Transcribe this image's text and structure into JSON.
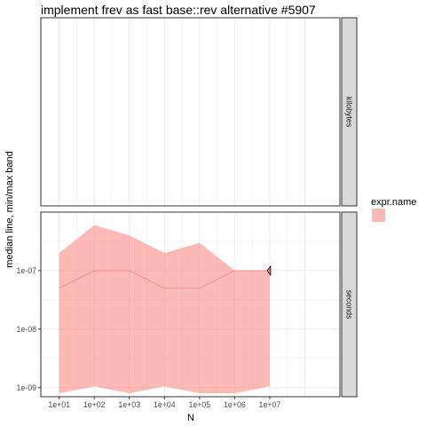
{
  "chart_data": {
    "type": "area",
    "title": "implement frev as fast base::rev alternative #5907",
    "xlabel": "N",
    "ylabel": "median line, min/max band",
    "x_scale": "log10",
    "y_scale": "log10",
    "x": [
      10,
      100,
      1000,
      10000,
      100000,
      1000000,
      10000000
    ],
    "x_tick_labels": [
      "1e+01",
      "1e+02",
      "1e+03",
      "1e+04",
      "1e+05",
      "1e+06",
      "1e+07"
    ],
    "xlim": [
      3,
      1000000000
    ],
    "panels": [
      {
        "strip": "kilobytes",
        "series": []
      },
      {
        "strip": "seconds",
        "y_ticks": [
          1e-09,
          1e-08,
          1e-07
        ],
        "y_tick_labels": [
          "1e-09",
          "1e-08",
          "1e-07"
        ],
        "ylim": [
          7e-10,
          1e-06
        ],
        "series": [
          {
            "median": [
              5e-08,
              1e-07,
              1e-07,
              5e-08,
              5e-08,
              1e-07,
              1e-07
            ],
            "min": [
              8e-10,
              1.05e-09,
              8e-10,
              1.05e-09,
              8e-10,
              8e-10,
              1.05e-09
            ],
            "max": [
              2e-07,
              6e-07,
              4e-07,
              2e-07,
              3e-07,
              1e-07,
              1e-07
            ]
          }
        ]
      }
    ],
    "legend": {
      "title": "expr.name",
      "placement": "right",
      "entries": [
        ""
      ]
    },
    "colors": {
      "band": "#f8766d",
      "line": "#f8766d",
      "strip_background": "#d9d9d9",
      "grid": "#ebebeb"
    },
    "grid": true
  }
}
